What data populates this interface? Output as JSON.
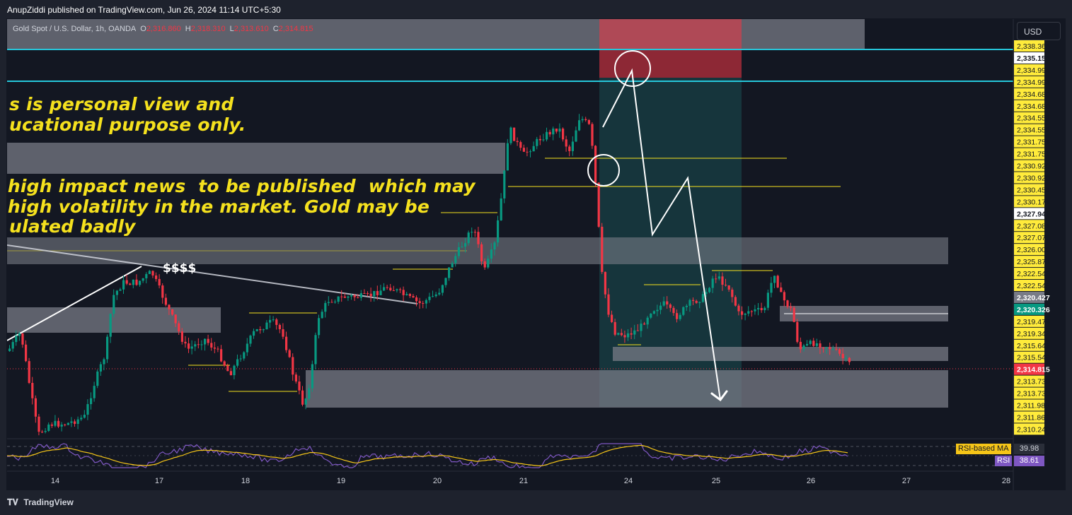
{
  "header": {
    "published": "AnupZiddi published on TradingView.com, Jun 26, 2024 11:14 UTC+5:30"
  },
  "legend": {
    "symbol": "Gold Spot / U.S. Dollar, 1h, OANDA",
    "o_label": "O",
    "o_value": "2,316.860",
    "h_label": "H",
    "h_value": "2,318.310",
    "l_label": "L",
    "l_value": "2,313.610",
    "c_label": "C",
    "c_value": "2,314.815"
  },
  "currency_button": "USD",
  "notes": {
    "line1": "s is personal view and",
    "line2": "ucational purpose only.",
    "line3": " high impact news  to be published  which may",
    "line4": " high volatility in the market. Gold may be",
    "line5": "ulated badly"
  },
  "annotation_text": "$$$$",
  "footer": {
    "brand": "TradingView"
  },
  "colors": {
    "up": "#089981",
    "down": "#f23645",
    "zone": "#787b86",
    "cyan": "#26c6da",
    "text_yellow": "#f5e11e",
    "price_axis_bg": "#ffeb3b",
    "rsi": "#7e57c2",
    "rsi_ma": "#f5c518"
  },
  "chart_data": {
    "type": "candlestick",
    "x_labels": [
      "14",
      "17",
      "18",
      "19",
      "20",
      "21",
      "24",
      "25",
      "26",
      "27",
      "28"
    ],
    "price_axis_labels": [
      "2,338.365",
      "2,335.154",
      "2,334.994",
      "2,334.994",
      "2,334.680",
      "2,334.680",
      "2,334.552",
      "2,334.552",
      "2,331.751",
      "2,331.751",
      "2,330.920",
      "2,330.920",
      "2,330.454",
      "2,330.171",
      "2,327.949",
      "2,327.087",
      "2,327.075",
      "2,326.003",
      "2,325.874",
      "2,322.546",
      "2,322.546",
      "2,320.427",
      "2,320.326",
      "2,319.479",
      "2,319.348",
      "2,315.641",
      "2,315.548",
      "2,314.815",
      "2,313.730",
      "2,313.730",
      "2,311.980",
      "2,311.861",
      "2,310.240"
    ],
    "last_price": "2,314.815",
    "price_tags": {
      "white_tag": "2,327.949",
      "grey_tag": "2,320.427",
      "green_tag": "2,320.326",
      "white_top": "2,335.154"
    },
    "ohlc_last": {
      "open": 2316.86,
      "high": 2318.31,
      "low": 2313.61,
      "close": 2314.815
    },
    "rsi": {
      "rsi_label": "RSI",
      "rsi_value": "38.61",
      "ma_label": "RSI-based MA",
      "ma_value": "39.98"
    }
  }
}
